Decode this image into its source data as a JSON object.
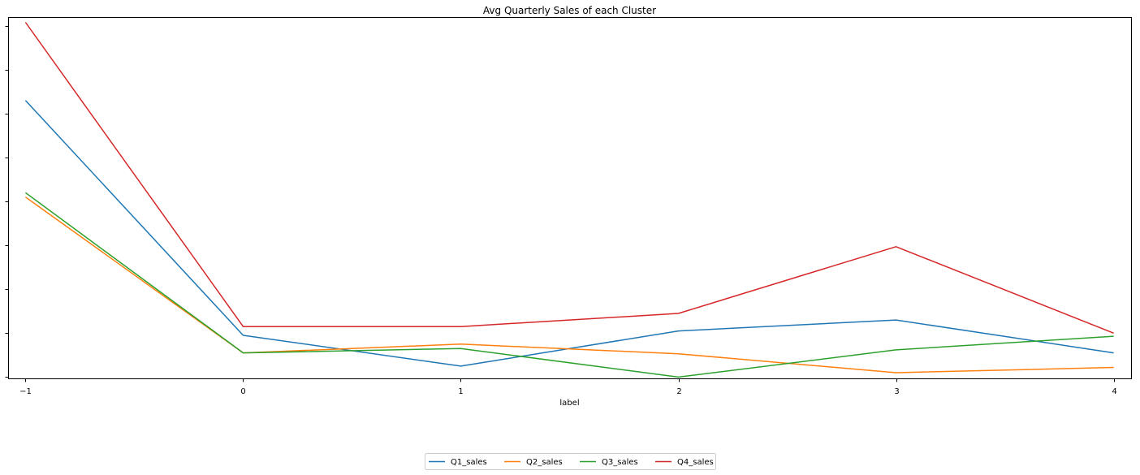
{
  "chart_data": {
    "type": "line",
    "title": "Avg Quarterly Sales of each Cluster",
    "xlabel": "label",
    "ylabel": "",
    "x": [
      -1,
      0,
      1,
      2,
      3,
      4
    ],
    "x_tick_labels": [
      "−1",
      "0",
      "1",
      "2",
      "3",
      "4"
    ],
    "xlim": [
      -1.08,
      4.08
    ],
    "ylim": [
      -0.03,
      8.2
    ],
    "y_ticks": [
      0,
      1,
      2,
      3,
      4,
      5,
      6,
      7,
      8
    ],
    "y_tick_labels_visible": false,
    "grid": false,
    "legend_position": "bottom-center",
    "series": [
      {
        "name": "Q1_sales",
        "color": "#1f77b4",
        "values": [
          6.3,
          0.95,
          0.25,
          1.05,
          1.3,
          0.55
        ]
      },
      {
        "name": "Q2_sales",
        "color": "#ff7f0e",
        "values": [
          4.1,
          0.55,
          0.75,
          0.53,
          0.1,
          0.22
        ]
      },
      {
        "name": "Q3_sales",
        "color": "#2ca02c",
        "values": [
          4.2,
          0.55,
          0.65,
          0.0,
          0.62,
          0.93
        ]
      },
      {
        "name": "Q4_sales",
        "color": "#d62728",
        "values": [
          8.08,
          1.15,
          1.15,
          1.45,
          2.97,
          1.0
        ]
      }
    ]
  }
}
